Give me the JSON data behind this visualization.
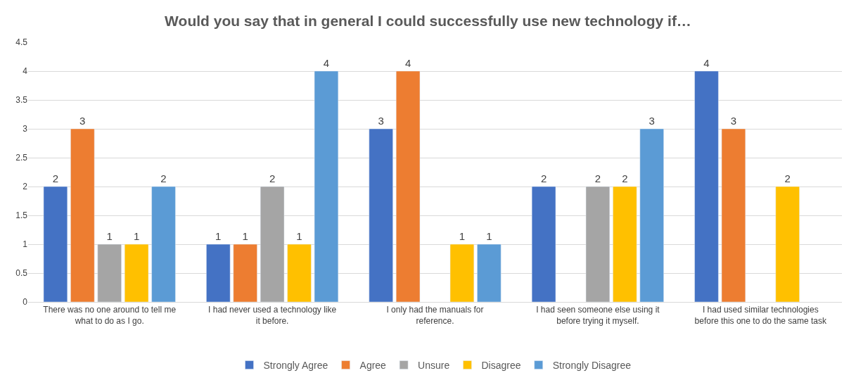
{
  "chart_data": {
    "type": "bar",
    "title": "Would you say that in general I could successfully use new technology if…",
    "categories": [
      "There was no one around to tell me what to do as I go.",
      "I had never used a technology like it before.",
      "I only had the manuals for reference.",
      "I had seen someone else using it before trying it myself.",
      "I had used similar technologies before this one to do the same task"
    ],
    "series": [
      {
        "name": "Strongly Agree",
        "color": "#4472c4",
        "values": [
          2,
          1,
          3,
          2,
          4
        ]
      },
      {
        "name": "Agree",
        "color": "#ed7d31",
        "values": [
          3,
          1,
          4,
          null,
          3
        ]
      },
      {
        "name": "Unsure",
        "color": "#a5a5a5",
        "values": [
          1,
          2,
          null,
          2,
          null
        ]
      },
      {
        "name": "Disagree",
        "color": "#ffc000",
        "values": [
          1,
          1,
          1,
          2,
          2
        ]
      },
      {
        "name": "Strongly Disagree",
        "color": "#5b9bd5",
        "values": [
          2,
          4,
          1,
          3,
          null
        ]
      }
    ],
    "ylim": [
      0,
      4.5
    ],
    "yticks": [
      0,
      0.5,
      1,
      1.5,
      2,
      2.5,
      3,
      3.5,
      4,
      4.5
    ],
    "grid": "y",
    "legend": "bottom",
    "data_labels": true
  }
}
